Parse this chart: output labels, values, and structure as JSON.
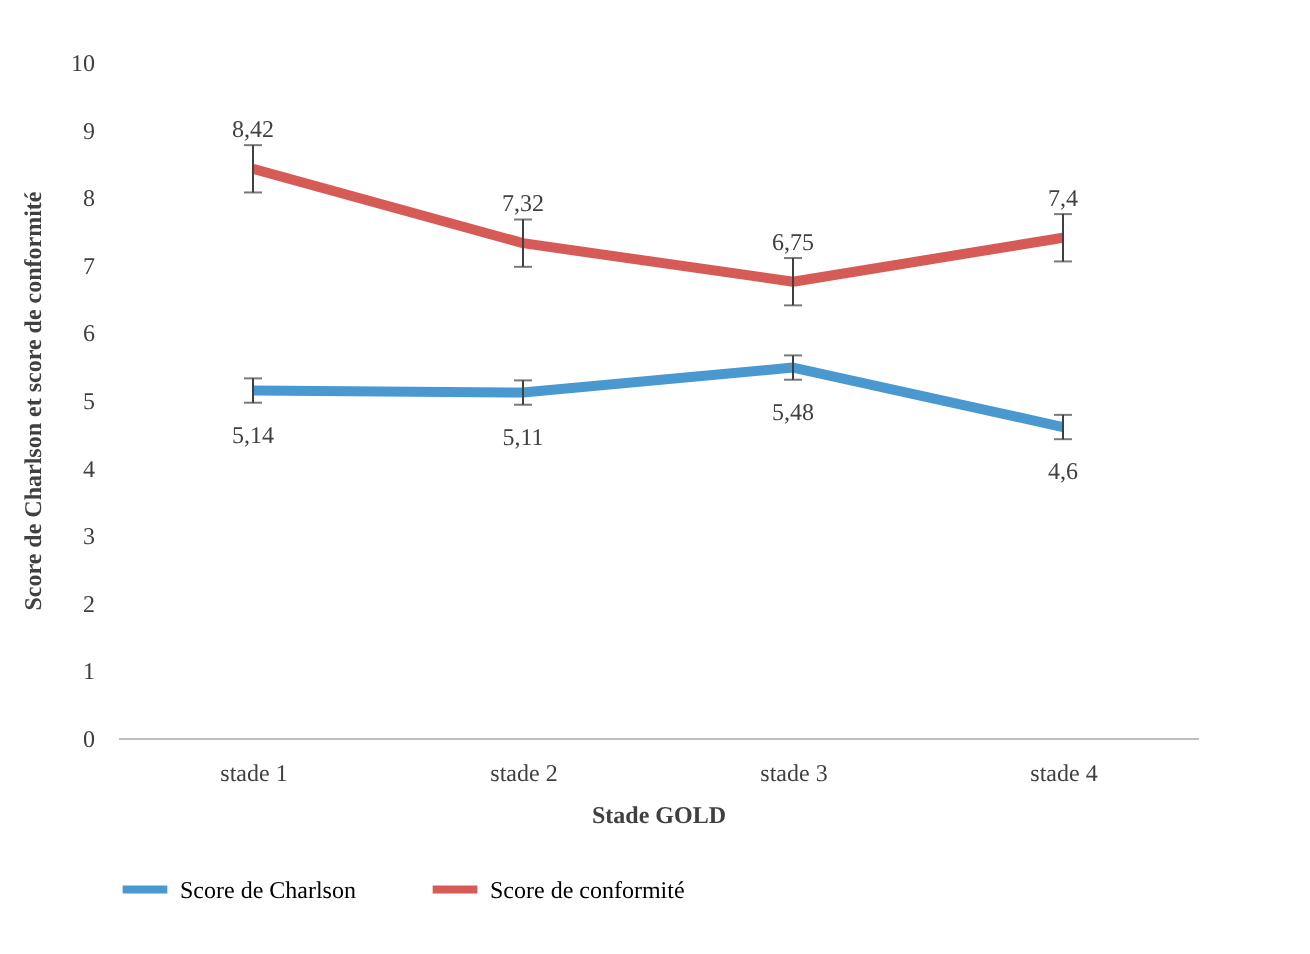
{
  "chart_data": {
    "type": "line",
    "xlabel": "Stade GOLD",
    "ylabel": "Score de Charlson et score de conformité",
    "categories": [
      "stade 1",
      "stade 2",
      "stade 3",
      "stade 4"
    ],
    "series": [
      {
        "name": "Score de Charlson",
        "color": "#4a98d0",
        "values": [
          5.14,
          5.11,
          5.48,
          4.6
        ],
        "errors": [
          0.18,
          0.18,
          0.18,
          0.18
        ],
        "value_labels": [
          "5,14",
          "5,11",
          "5,48",
          "4,6"
        ]
      },
      {
        "name": "Score de conformité",
        "color": "#d65a55",
        "values": [
          8.42,
          7.32,
          6.75,
          7.4
        ],
        "errors": [
          0.35,
          0.35,
          0.35,
          0.35
        ],
        "value_labels": [
          "8,42",
          "7,32",
          "6,75",
          "7,4"
        ]
      }
    ],
    "ylim": [
      0,
      10
    ],
    "yticks": [
      0,
      1,
      2,
      3,
      4,
      5,
      6,
      7,
      8,
      9,
      10
    ],
    "grid": false,
    "legend": "bottom",
    "marker": "none",
    "line_style": "solid"
  }
}
